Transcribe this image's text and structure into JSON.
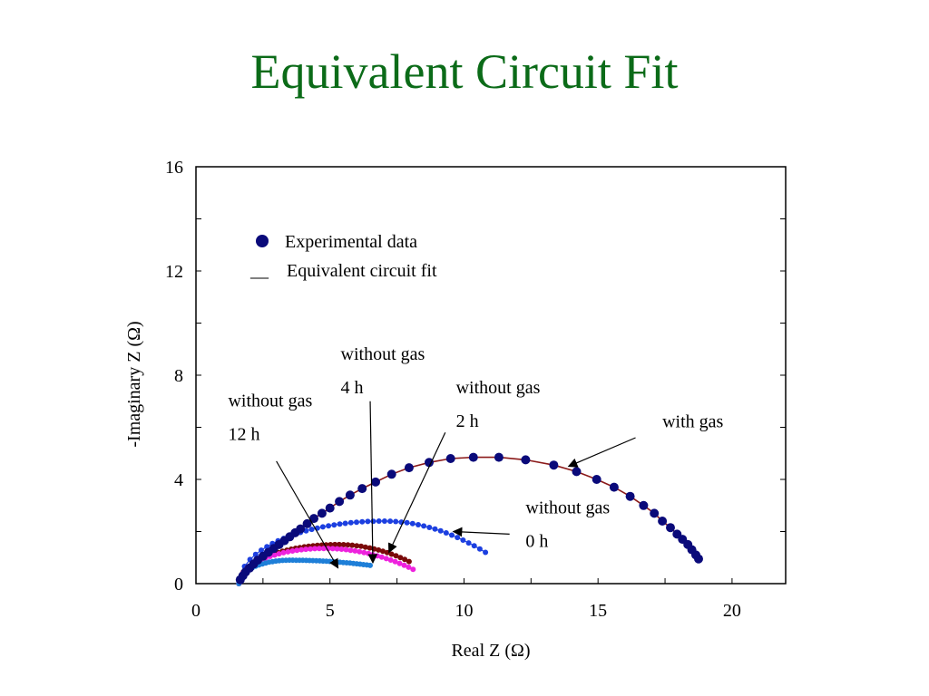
{
  "slide": {
    "title": "Equivalent Circuit Fit"
  },
  "chart_data": {
    "type": "scatter",
    "title": "",
    "xlabel": "Real Z (Ω)",
    "ylabel": "-Imaginary Z (Ω)",
    "xlim": [
      0,
      22
    ],
    "ylim": [
      0,
      16
    ],
    "x_ticks": [
      "0",
      "5",
      "10",
      "15",
      "20"
    ],
    "y_ticks": [
      "0",
      "4",
      "8",
      "12",
      "16"
    ],
    "grid": false,
    "legend": {
      "placement": "top-left",
      "entries": [
        {
          "marker": "●",
          "label": "Experimental data"
        },
        {
          "marker": "__",
          "label": "Equivalent circuit fit"
        }
      ]
    },
    "series": [
      {
        "name": "with gas",
        "color": "#0a0a7a",
        "fit_color": "#8b1a1a",
        "marker_size": "large",
        "label_lines": [
          "with gas"
        ],
        "x": [
          1.65,
          1.75,
          1.85,
          2.0,
          2.15,
          2.3,
          2.5,
          2.7,
          2.9,
          3.1,
          3.3,
          3.5,
          3.7,
          3.9,
          4.15,
          4.4,
          4.7,
          5.0,
          5.35,
          5.75,
          6.2,
          6.7,
          7.3,
          7.95,
          8.7,
          9.5,
          10.35,
          11.3,
          12.3,
          13.35,
          14.2,
          14.95,
          15.6,
          16.2,
          16.7,
          17.1,
          17.4,
          17.7,
          17.95,
          18.15,
          18.35,
          18.5,
          18.65,
          18.75
        ],
        "y": [
          0.15,
          0.3,
          0.45,
          0.6,
          0.75,
          0.9,
          1.05,
          1.2,
          1.35,
          1.5,
          1.65,
          1.8,
          1.95,
          2.1,
          2.3,
          2.5,
          2.7,
          2.9,
          3.15,
          3.4,
          3.65,
          3.9,
          4.2,
          4.45,
          4.65,
          4.8,
          4.85,
          4.85,
          4.75,
          4.55,
          4.3,
          4.0,
          3.7,
          3.35,
          3.0,
          2.7,
          2.4,
          2.15,
          1.9,
          1.7,
          1.5,
          1.3,
          1.1,
          0.95
        ]
      },
      {
        "name": "without gas 0 h",
        "color": "#1c3fe0",
        "fit_color": "#1c3fe0",
        "marker_size": "medium",
        "label_lines": [
          "without gas",
          "0 h"
        ],
        "x_from": 1.6,
        "x_to": 10.8,
        "x_peak": 7.0,
        "y_peak": 2.4,
        "y_end": 1.2,
        "points": 45
      },
      {
        "name": "without gas 2 h",
        "color": "#7a0a0a",
        "fit_color": "#7a0a0a",
        "marker_size": "medium",
        "label_lines": [
          "without gas",
          "2 h"
        ],
        "x_from": 1.6,
        "x_to": 7.95,
        "x_peak": 5.3,
        "y_peak": 1.5,
        "y_end": 0.85,
        "points": 40
      },
      {
        "name": "without gas 4 h",
        "color": "#ee22dd",
        "fit_color": "#ee22dd",
        "marker_size": "medium",
        "label_lines": [
          "without gas",
          "4 h"
        ],
        "x_from": 1.6,
        "x_to": 8.1,
        "x_peak": 4.8,
        "y_peak": 1.35,
        "y_end": 0.55,
        "points": 40
      },
      {
        "name": "without gas 12 h",
        "color": "#1e7fd8",
        "fit_color": "#1e7fd8",
        "marker_size": "medium",
        "label_lines": [
          "without gas",
          "12 h"
        ],
        "x_from": 1.6,
        "x_to": 6.5,
        "x_peak": 3.5,
        "y_peak": 0.9,
        "y_end": 0.7,
        "points": 40
      }
    ],
    "annotations": [
      {
        "series": "with gas",
        "text_lines": [
          "with gas"
        ],
        "text_at": [
          17.4,
          6.0
        ],
        "arrow_from": [
          16.4,
          5.6
        ],
        "arrow_to": [
          13.9,
          4.5
        ]
      },
      {
        "series": "without gas 0 h",
        "text_lines": [
          "without gas",
          "0 h"
        ],
        "text_at": [
          12.3,
          2.7
        ],
        "arrow_from": [
          11.7,
          1.9
        ],
        "arrow_to": [
          9.6,
          2.0
        ]
      },
      {
        "series": "without gas 2 h",
        "text_lines": [
          "without gas",
          "2 h"
        ],
        "text_at": [
          9.7,
          7.3
        ],
        "arrow_from": [
          9.3,
          5.8
        ],
        "arrow_to": [
          7.2,
          1.2
        ]
      },
      {
        "series": "without gas 4 h",
        "text_lines": [
          "without gas",
          "4 h"
        ],
        "text_at": [
          5.4,
          8.6
        ],
        "arrow_from": [
          6.5,
          7.0
        ],
        "arrow_to": [
          6.6,
          0.8
        ]
      },
      {
        "series": "without gas 12 h",
        "text_lines": [
          "without gas",
          "12 h"
        ],
        "text_at": [
          1.2,
          6.8
        ],
        "arrow_from": [
          3.0,
          4.7
        ],
        "arrow_to": [
          5.3,
          0.6
        ]
      }
    ]
  }
}
